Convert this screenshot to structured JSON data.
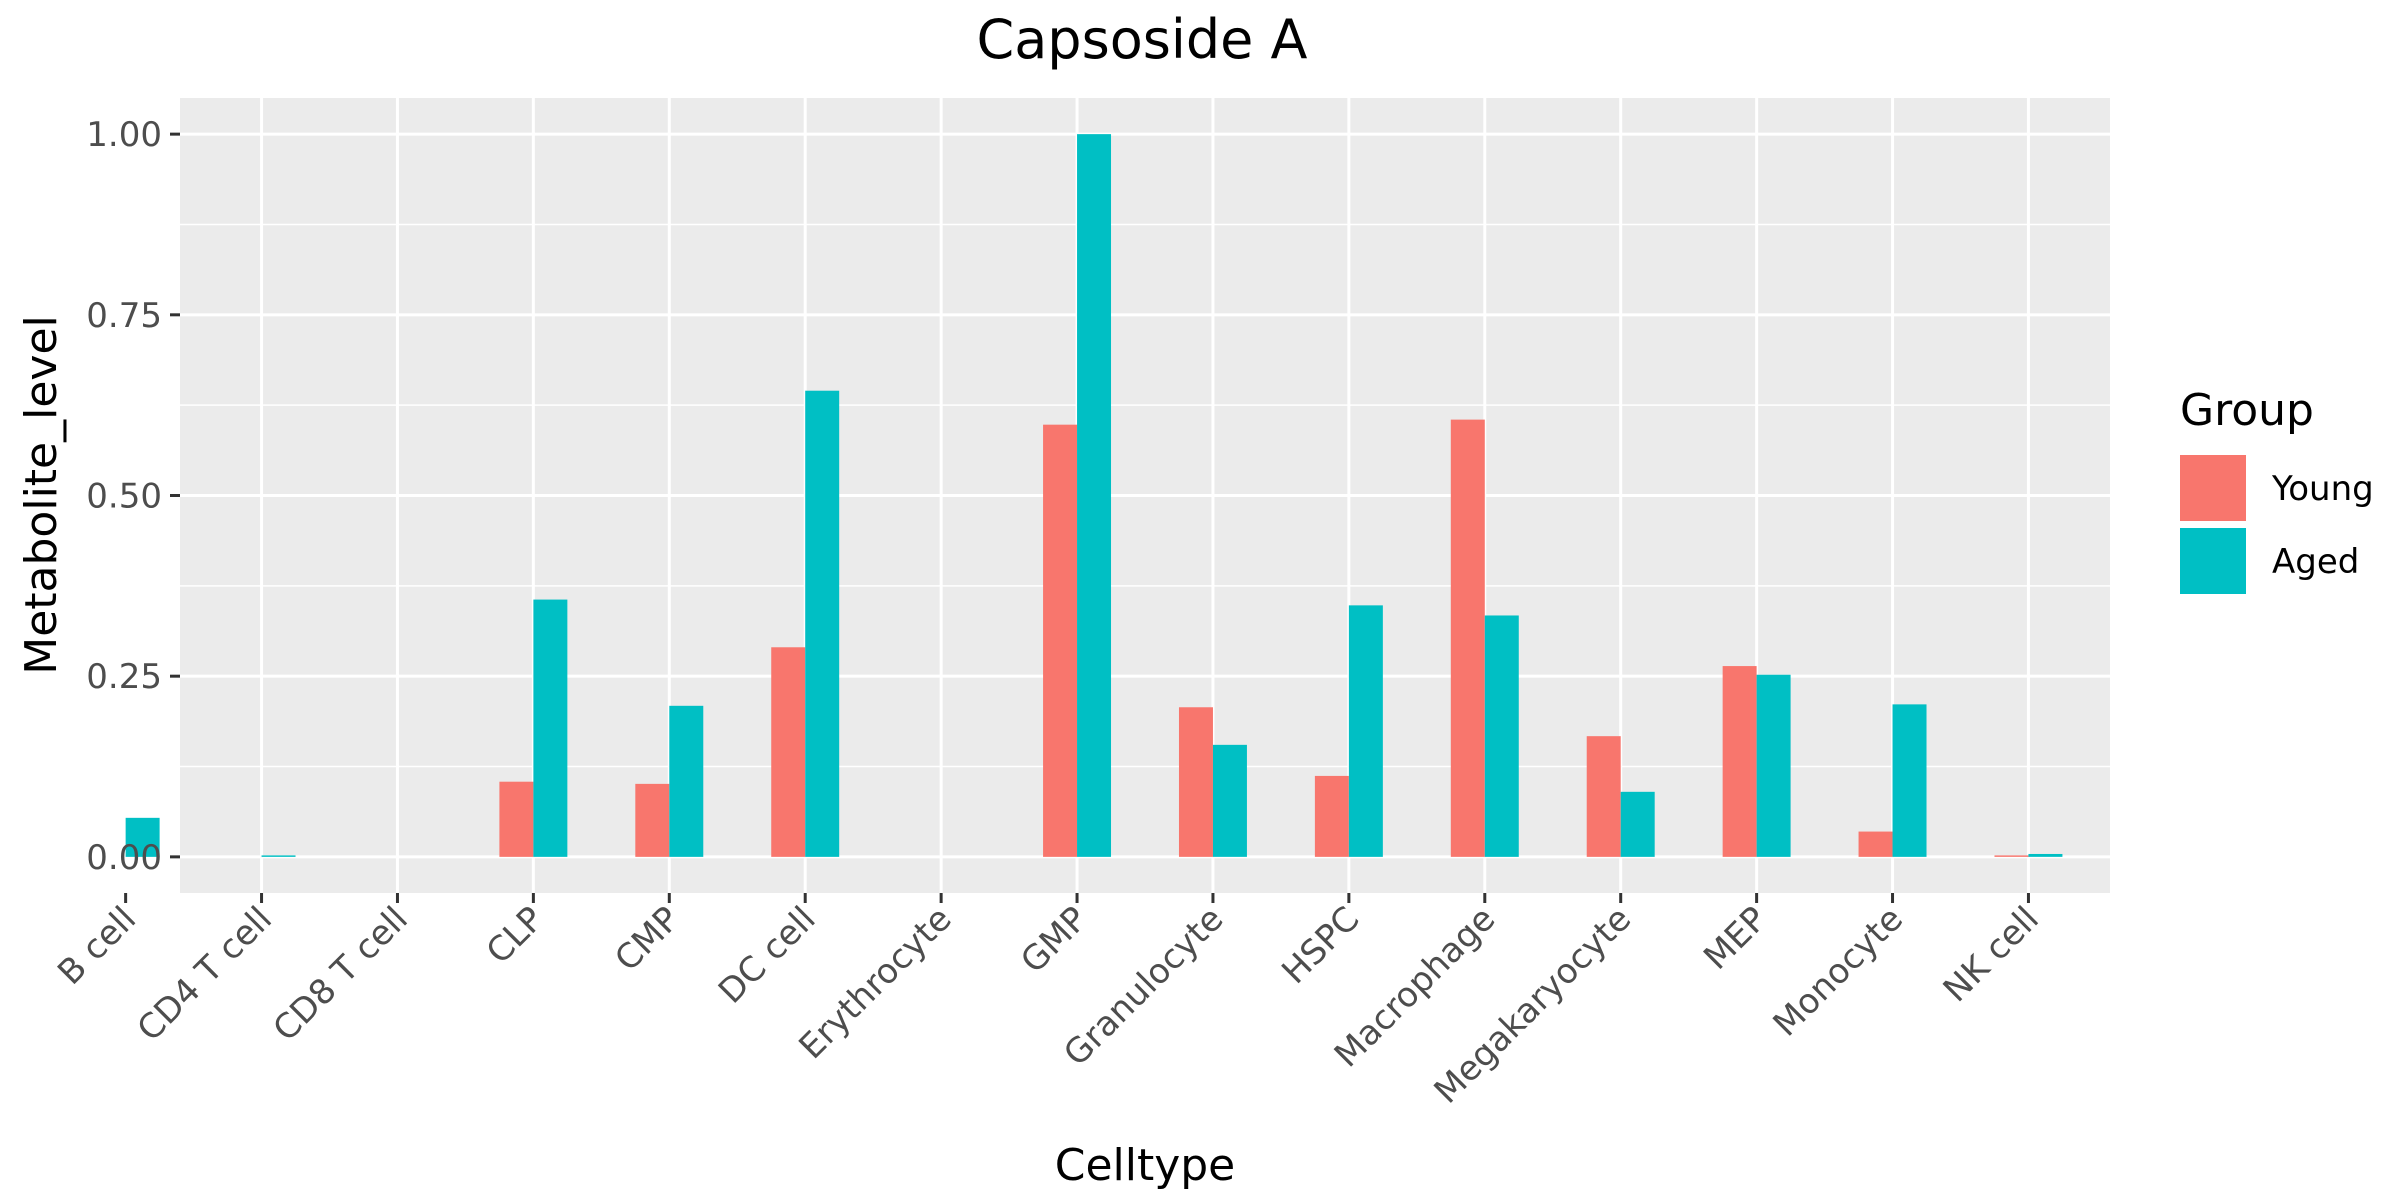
{
  "chart_data": {
    "type": "bar",
    "title": "Capsoside A",
    "xlabel": "Celltype",
    "ylabel": "Metabolite_level",
    "ylim": [
      -0.05,
      1.05
    ],
    "yticks": [
      0.0,
      0.25,
      0.5,
      0.75,
      1.0
    ],
    "ytick_labels": [
      "0.00",
      "0.25",
      "0.50",
      "0.75",
      "1.00"
    ],
    "grid": true,
    "legend_position": "right",
    "legend_title": "Group",
    "categories": [
      "B cell",
      "CD4 T cell",
      "CD8 T cell",
      "CLP",
      "CMP",
      "DC cell",
      "Erythrocyte",
      "GMP",
      "Granulocyte",
      "HSPC",
      "Macrophage",
      "Megakaryocyte",
      "MEP",
      "Monocyte",
      "NK cell"
    ],
    "series": [
      {
        "name": "Young",
        "color": "#F8766D",
        "values": [
          0.0,
          0.0,
          0.0,
          0.104,
          0.101,
          0.29,
          0.0,
          0.598,
          0.207,
          0.112,
          0.605,
          0.167,
          0.264,
          0.035,
          0.002
        ]
      },
      {
        "name": "Aged",
        "color": "#00BFC4",
        "values": [
          0.054,
          0.002,
          0.0,
          0.356,
          0.209,
          0.645,
          0.0,
          1.0,
          0.155,
          0.348,
          0.334,
          0.09,
          0.252,
          0.211,
          0.004
        ]
      }
    ]
  },
  "colors": {
    "panel_bg": "#EBEBEB",
    "grid": "#FFFFFF",
    "tick": "#333333"
  }
}
